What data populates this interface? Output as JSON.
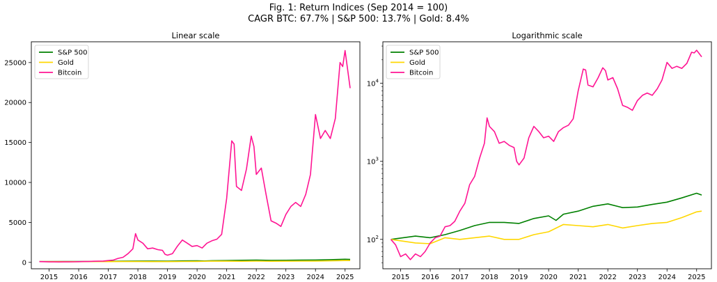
{
  "figure": {
    "title_line1": "Fig. 1: Return Indices (Sep 2014 = 100)",
    "title_line2": "CAGR BTC: 67.7% | S&P 500: 13.7% | Gold: 8.4%"
  },
  "chart_data": [
    {
      "type": "line",
      "title": "Linear scale",
      "xlabel": "",
      "ylabel": "",
      "yscale": "linear",
      "xlim": [
        2014.4,
        2025.5
      ],
      "ylim": [
        -800,
        27600
      ],
      "xticks": [
        2015,
        2016,
        2017,
        2018,
        2019,
        2020,
        2021,
        2022,
        2023,
        2024,
        2025
      ],
      "yticks": [
        0,
        5000,
        10000,
        15000,
        20000,
        25000
      ],
      "grid": false,
      "legend": "top-left",
      "series": [
        {
          "name": "S&P 500",
          "color": "#008000",
          "x": [
            2014.67,
            2015.5,
            2016.0,
            2016.5,
            2017.0,
            2017.5,
            2018.0,
            2018.5,
            2019.0,
            2019.5,
            2020.0,
            2020.25,
            2020.5,
            2021.0,
            2021.5,
            2022.0,
            2022.5,
            2023.0,
            2023.5,
            2024.0,
            2024.5,
            2025.0,
            2025.17
          ],
          "y": [
            100,
            110,
            105,
            115,
            130,
            150,
            165,
            165,
            160,
            185,
            200,
            175,
            210,
            230,
            265,
            285,
            255,
            260,
            280,
            300,
            340,
            390,
            370
          ]
        },
        {
          "name": "Gold",
          "color": "#FFD700",
          "x": [
            2014.67,
            2015.5,
            2016.0,
            2016.5,
            2017.0,
            2017.5,
            2018.0,
            2018.5,
            2019.0,
            2019.5,
            2020.0,
            2020.5,
            2021.0,
            2021.5,
            2022.0,
            2022.5,
            2023.0,
            2023.5,
            2024.0,
            2024.5,
            2025.0,
            2025.17
          ],
          "y": [
            100,
            90,
            88,
            105,
            100,
            105,
            110,
            100,
            100,
            115,
            125,
            155,
            150,
            145,
            155,
            140,
            150,
            160,
            165,
            190,
            225,
            230
          ]
        },
        {
          "name": "Bitcoin",
          "color": "#ff1493",
          "x": [
            2014.67,
            2014.83,
            2015.0,
            2015.17,
            2015.33,
            2015.5,
            2015.67,
            2015.83,
            2016.0,
            2016.17,
            2016.33,
            2016.5,
            2016.67,
            2016.83,
            2017.0,
            2017.17,
            2017.33,
            2017.5,
            2017.67,
            2017.83,
            2017.92,
            2018.0,
            2018.17,
            2018.33,
            2018.5,
            2018.67,
            2018.83,
            2018.92,
            2019.0,
            2019.17,
            2019.33,
            2019.5,
            2019.67,
            2019.83,
            2020.0,
            2020.17,
            2020.33,
            2020.5,
            2020.67,
            2020.83,
            2021.0,
            2021.17,
            2021.25,
            2021.33,
            2021.5,
            2021.67,
            2021.83,
            2021.92,
            2022.0,
            2022.17,
            2022.33,
            2022.5,
            2022.67,
            2022.83,
            2023.0,
            2023.17,
            2023.33,
            2023.5,
            2023.67,
            2023.83,
            2024.0,
            2024.17,
            2024.33,
            2024.5,
            2024.67,
            2024.83,
            2024.92,
            2025.0,
            2025.17
          ],
          "y": [
            100,
            85,
            60,
            65,
            55,
            65,
            60,
            70,
            90,
            105,
            110,
            145,
            150,
            170,
            230,
            290,
            500,
            640,
            1100,
            1700,
            3600,
            2800,
            2400,
            1700,
            1800,
            1600,
            1500,
            1000,
            900,
            1100,
            2000,
            2800,
            2400,
            2000,
            2100,
            1800,
            2400,
            2700,
            2900,
            3500,
            8000,
            15200,
            14800,
            9500,
            9000,
            11700,
            15800,
            14500,
            11000,
            11800,
            8500,
            5200,
            4900,
            4500,
            6000,
            7000,
            7500,
            7000,
            8500,
            11000,
            18500,
            15500,
            16500,
            15500,
            18000,
            25000,
            24500,
            26500,
            21800
          ]
        }
      ]
    },
    {
      "type": "line",
      "title": "Logarithmic scale",
      "xlabel": "",
      "ylabel": "",
      "yscale": "log",
      "xlim": [
        2014.4,
        2025.5
      ],
      "ylim": [
        42,
        34000
      ],
      "xticks": [
        2015,
        2016,
        2017,
        2018,
        2019,
        2020,
        2021,
        2022,
        2023,
        2024,
        2025
      ],
      "yticks": [
        100,
        1000,
        10000
      ],
      "ytick_labels": [
        "10",
        "10",
        "10"
      ],
      "ytick_exponents": [
        "2",
        "3",
        "4"
      ],
      "grid": false,
      "legend": "top-left",
      "series_ref": "same as Linear scale"
    }
  ]
}
